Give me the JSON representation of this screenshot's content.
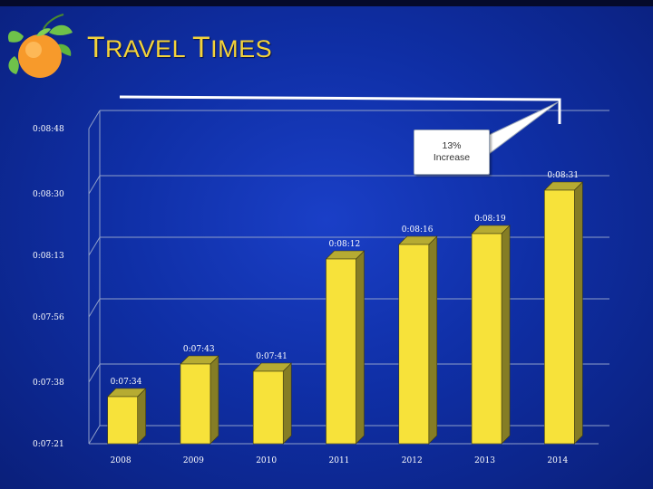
{
  "slide": {
    "title_first_big": "T",
    "title_first_rest": "RAVEL ",
    "title_second_big": "T",
    "title_second_rest": "IMES"
  },
  "callout": {
    "line1": "13%",
    "line2": "Increase"
  },
  "colors": {
    "bar_front": "#f7e23a",
    "bar_side": "#857d25",
    "bar_top": "#b6ab32",
    "title": "#f4d33a",
    "background": "#1235b8"
  },
  "chart_data": {
    "type": "bar",
    "categories": [
      "2008",
      "2009",
      "2010",
      "2011",
      "2012",
      "2013",
      "2014"
    ],
    "values": [
      454,
      463,
      461,
      492,
      496,
      499,
      511
    ],
    "data_labels": [
      "0:07:34",
      "0:07:43",
      "0:07:41",
      "0:08:12",
      "0:08:16",
      "0:08:19",
      "0:08:31"
    ],
    "y_ticks": [
      441,
      458,
      476,
      493,
      510,
      528
    ],
    "y_tick_labels": [
      "0:07:21",
      "0:07:38",
      "0:07:56",
      "0:08:13",
      "0:08:30",
      "0:08:48"
    ],
    "ylim": [
      441,
      528
    ],
    "y_unit": "seconds",
    "grid": true,
    "title": "",
    "xlabel": "",
    "ylabel": ""
  }
}
